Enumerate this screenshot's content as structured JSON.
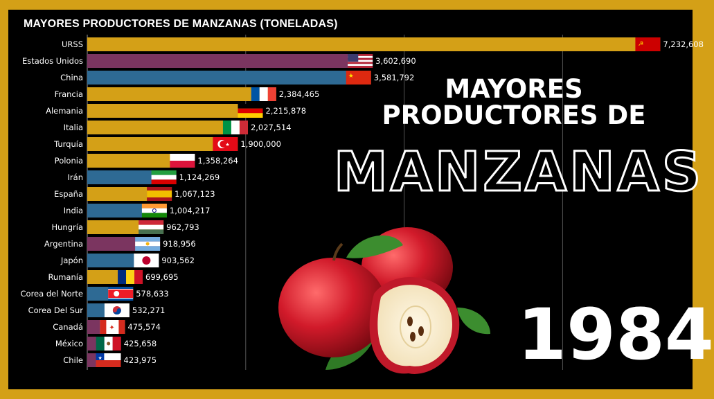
{
  "chart_data": {
    "type": "bar",
    "orientation": "horizontal",
    "title": "MAYORES PRODUCTORES DE MANZANAS (TONELADAS)",
    "categories": [
      "URSS",
      "Estados Unidos",
      "China",
      "Francia",
      "Alemania",
      "Italia",
      "Turquía",
      "Polonia",
      "Irán",
      "España",
      "India",
      "Hungría",
      "Argentina",
      "Japón",
      "Rumanía",
      "Corea del Norte",
      "Corea Del Sur",
      "Canadá",
      "México",
      "Chile"
    ],
    "values": [
      7232608,
      3602690,
      3581792,
      2384465,
      2215878,
      2027514,
      1900000,
      1358264,
      1124269,
      1067123,
      1004217,
      962793,
      918956,
      903562,
      699695,
      578633,
      532271,
      475574,
      425658,
      423975
    ],
    "value_labels": [
      "7,232,608",
      "3,602,690",
      "3,581,792",
      "2,384,465",
      "2,215,878",
      "2,027,514",
      "1,900,000",
      "1,358,264",
      "1,124,269",
      "1,067,123",
      "1,004,217",
      "962,793",
      "918,956",
      "903,562",
      "699,695",
      "578,633",
      "532,271",
      "475,574",
      "425,658",
      "423,975"
    ],
    "bar_colors": [
      "#d4a017",
      "#7b3560",
      "#2e6a94",
      "#d4a017",
      "#d4a017",
      "#d4a017",
      "#d4a017",
      "#d4a017",
      "#2e6a94",
      "#d4a017",
      "#2e6a94",
      "#d4a017",
      "#7b3560",
      "#2e6a94",
      "#d4a017",
      "#2e6a94",
      "#2e6a94",
      "#7b3560",
      "#7b3560",
      "#7b3560"
    ],
    "flags": [
      "ussr",
      "usa",
      "china",
      "france",
      "germany",
      "italy",
      "turkey",
      "poland",
      "iran",
      "spain",
      "india",
      "hungary",
      "argentina",
      "japan",
      "romania",
      "north-korea",
      "south-korea",
      "canada",
      "mexico",
      "chile"
    ],
    "xlim": [
      0,
      7500000
    ],
    "gridlines": [
      2000000,
      4000000,
      6000000
    ],
    "grid": true
  },
  "overlay": {
    "headline_line1": "MAYORES",
    "headline_line2": "PRODUCTORES DE",
    "headline_big": "MANZANAS",
    "year": "1984"
  },
  "colors": {
    "frame": "#d4a017",
    "background": "#000000"
  },
  "decoration": "apples-image"
}
